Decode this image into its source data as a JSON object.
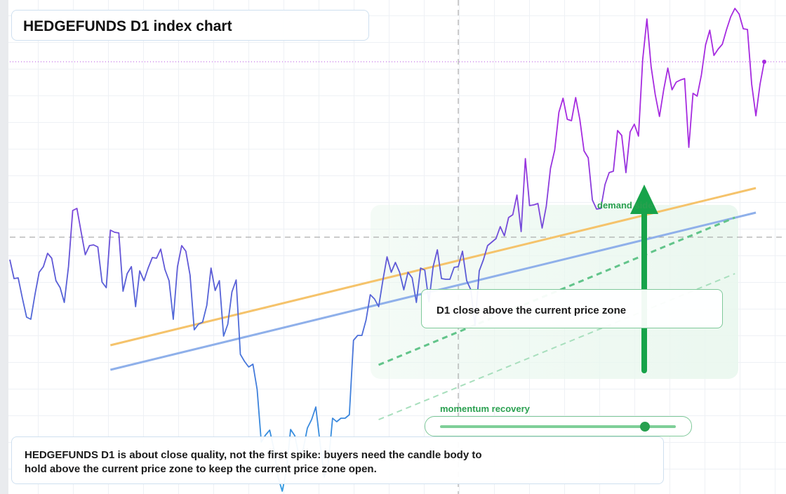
{
  "chart_data": {
    "type": "line",
    "title": "HEDGEFUNDS D1 index chart",
    "xlim": [
      0,
      180
    ],
    "ylim": [
      0,
      704
    ],
    "series": [
      {
        "colors": [
          "#2f98e0",
          "#5b5bd6",
          "#a62be0"
        ],
        "values": [
          334,
          307,
          308,
          279,
          252,
          249,
          284,
          316,
          324,
          343,
          336,
          304,
          294,
          273,
          324,
          404,
          407,
          374,
          341,
          354,
          355,
          352,
          302,
          294,
          376,
          373,
          372,
          289,
          314,
          324,
          267,
          318,
          304,
          322,
          337,
          336,
          349,
          320,
          304,
          249,
          324,
          354,
          346,
          312,
          234,
          242,
          245,
          269,
          322,
          290,
          304,
          225,
          242,
          288,
          305,
          199,
          189,
          181,
          185,
          149,
          74,
          84,
          91,
          64,
          24,
          4,
          34,
          92,
          83,
          54,
          64,
          94,
          106,
          124,
          74,
          24,
          44,
          108,
          103,
          108,
          108,
          113,
          219,
          226,
          226,
          248,
          284,
          278,
          267,
          304,
          338,
          316,
          330,
          316,
          291,
          316,
          308,
          273,
          322,
          319,
          274,
          324,
          348,
          307,
          306,
          306,
          323,
          324,
          346,
          304,
          291,
          240,
          318,
          334,
          354,
          359,
          364,
          381,
          368,
          394,
          398,
          426,
          374,
          478,
          411,
          412,
          414,
          379,
          410,
          464,
          490,
          544,
          564,
          534,
          532,
          565,
          534,
          489,
          479,
          419,
          406,
          407,
          441,
          458,
          460,
          518,
          511,
          458,
          516,
          527,
          510,
          619,
          677,
          609,
          569,
          538,
          576,
          607,
          576,
          587,
          590,
          592,
          494,
          571,
          567,
          597,
          640,
          661,
          625,
          634,
          641,
          662,
          680,
          692,
          684,
          663,
          662,
          584,
          539,
          584,
          616
        ]
      }
    ],
    "levels": [
      {
        "value": 616,
        "color": "#b44be0",
        "dash": "dotted"
      },
      {
        "value": 366,
        "color": "#9a9a9a",
        "dash": "dashed"
      }
    ],
    "crosshair_x": 107,
    "trendlines": [
      {
        "x": [
          24,
          178
        ],
        "values": [
          212,
          436
        ],
        "color": "#f5c36b",
        "dash": "solid",
        "width": 3
      },
      {
        "x": [
          24,
          178
        ],
        "values": [
          177,
          401
        ],
        "color": "#8fb0ea",
        "dash": "solid",
        "width": 3
      },
      {
        "x": [
          88,
          173
        ],
        "values": [
          184,
          394
        ],
        "color": "#62c48a",
        "dash": "dashed",
        "width": 3
      },
      {
        "x": [
          88,
          173
        ],
        "values": [
          106,
          314
        ],
        "color": "#a8dfbd",
        "dash": "dashed",
        "width": 2
      }
    ],
    "demand_label": "demand side",
    "callout": "D1 close above the current price zone",
    "slider_label": "momentum recovery",
    "note": [
      "HEDGEFUNDS D1 is about close quality, not the first spike: buyers need the candle body to",
      "hold above the current price zone to keep the current price zone open."
    ]
  }
}
